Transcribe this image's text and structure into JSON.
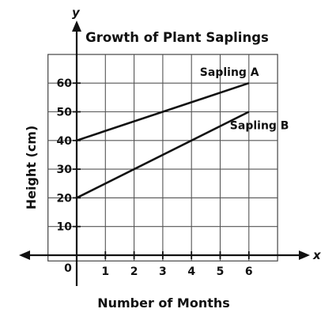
{
  "chart_data": {
    "type": "line",
    "title": "Growth of Plant Saplings",
    "xlabel": "Number of Months",
    "ylabel": "Height (cm)",
    "x_axis_letter": "x",
    "y_axis_letter": "y",
    "origin_label": "0",
    "xlim": [
      0,
      6
    ],
    "ylim": [
      0,
      70
    ],
    "x_ticks": [
      1,
      2,
      3,
      4,
      5,
      6
    ],
    "x_tick_labels": [
      "1",
      "2",
      "3",
      "4",
      "5",
      "6"
    ],
    "y_ticks": [
      10,
      20,
      30,
      40,
      50,
      60
    ],
    "y_tick_labels": [
      "10",
      "20",
      "30",
      "40",
      "50",
      "60"
    ],
    "grid": true,
    "series": [
      {
        "name": "Sapling A",
        "x": [
          0,
          6
        ],
        "y": [
          40,
          60
        ]
      },
      {
        "name": "Sapling B",
        "x": [
          0,
          6
        ],
        "y": [
          20,
          50
        ]
      }
    ]
  }
}
